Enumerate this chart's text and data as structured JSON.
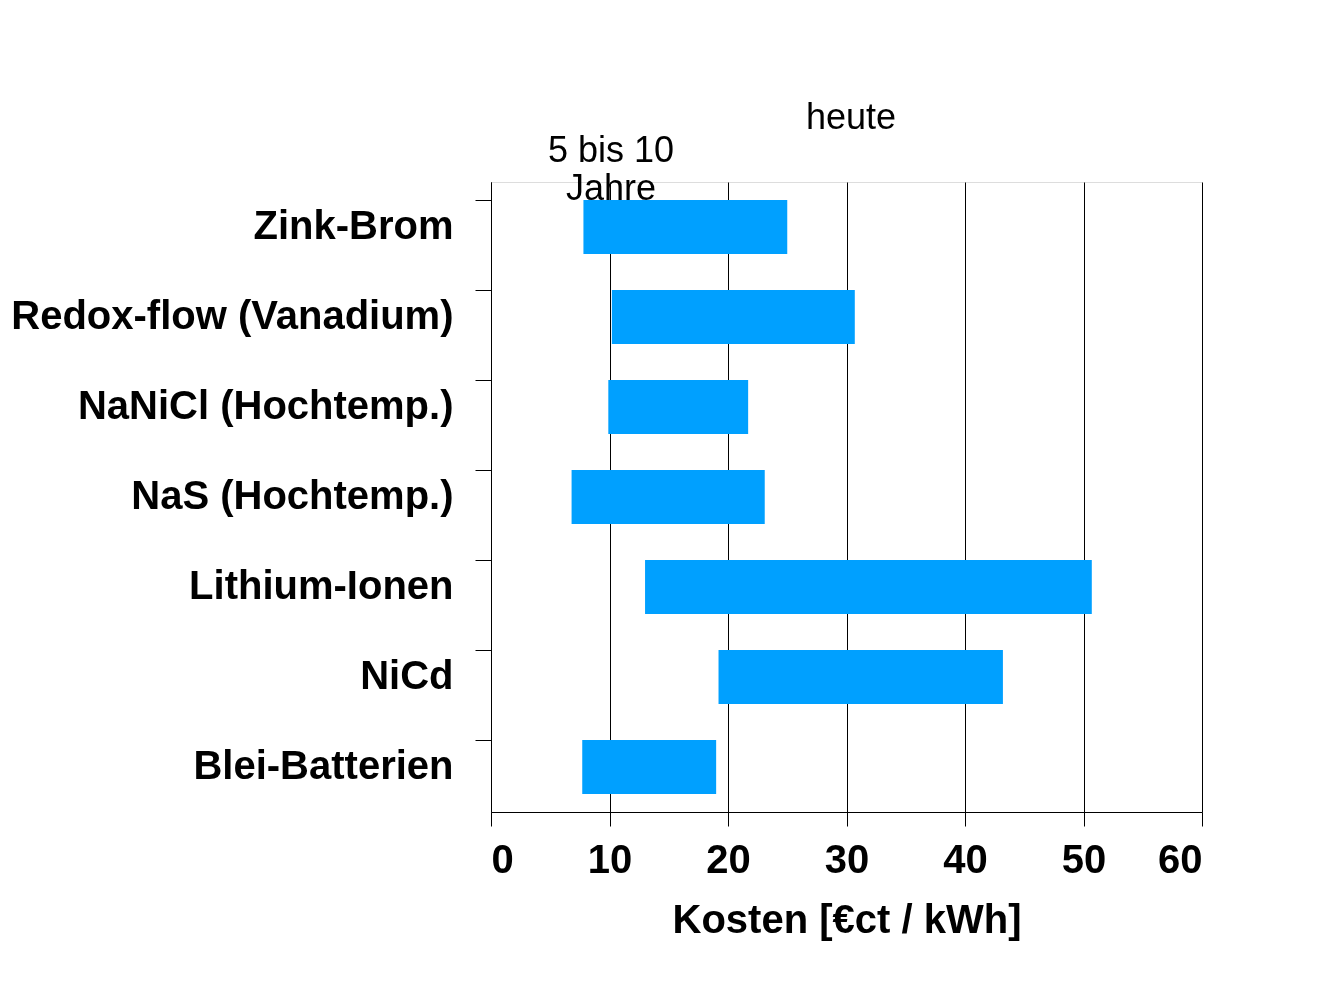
{
  "chart_data": {
    "type": "bar",
    "orientation": "horizontal",
    "xlabel": "Kosten [€ct / kWh]",
    "categories": [
      "Zink-Brom",
      "Redox-flow (Vanadium)",
      "NaNiCl (Hochtemp.)",
      "NaS (Hochtemp.)",
      "Lithium-Ionen",
      "NiCd",
      "Blei-Batterien"
    ],
    "base": [
      7.8,
      10.2,
      9.9,
      6.8,
      13.0,
      19.2,
      7.7
    ],
    "values": [
      17.2,
      20.5,
      11.8,
      16.3,
      37.7,
      24.0,
      11.3
    ],
    "color": "#00a0ff",
    "xlim": [
      0,
      60
    ],
    "xticks": [
      0,
      10,
      20,
      30,
      40,
      50,
      60
    ],
    "grid": "x",
    "annotations": [
      "5 bis 10\nJahre",
      "heute"
    ]
  }
}
